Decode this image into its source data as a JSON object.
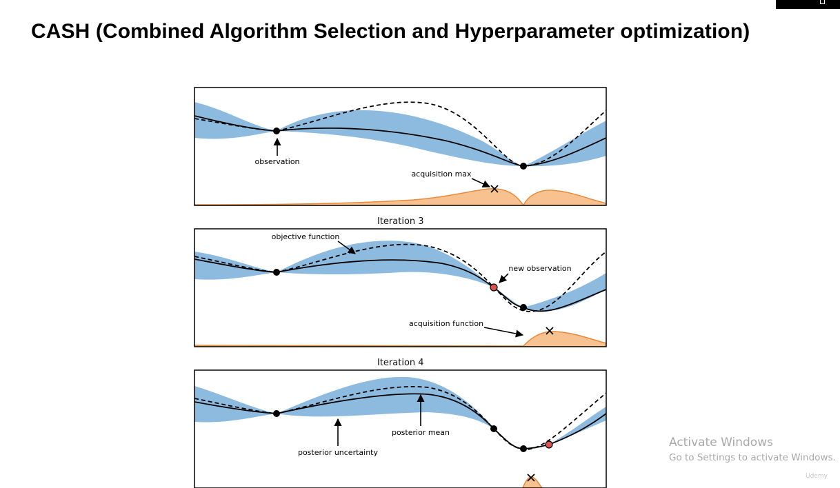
{
  "slide": {
    "title": "CASH (Combined Algorithm Selection and Hyperparameter optimization)"
  },
  "figure": {
    "panels": [
      {
        "title": "",
        "annotations": {
          "observation": "observation",
          "acquisition_max": "acquisition max"
        }
      },
      {
        "title": "Iteration 3",
        "annotations": {
          "objective_function": "objective function",
          "new_observation": "new observation",
          "acquisition_function": "acquisition function"
        }
      },
      {
        "title": "Iteration 4",
        "annotations": {
          "posterior_mean": "posterior mean",
          "posterior_uncertainty": "posterior uncertainty"
        }
      }
    ],
    "colors": {
      "uncertainty": "#8dbbe0",
      "acquisition_fill": "#f7c28f",
      "acquisition_line": "#e8893a",
      "new_point": "#d9534f"
    }
  },
  "watermark": {
    "title": "Activate Windows",
    "subtitle": "Go to Settings to activate Windows."
  },
  "corner_logo": "Udemy"
}
